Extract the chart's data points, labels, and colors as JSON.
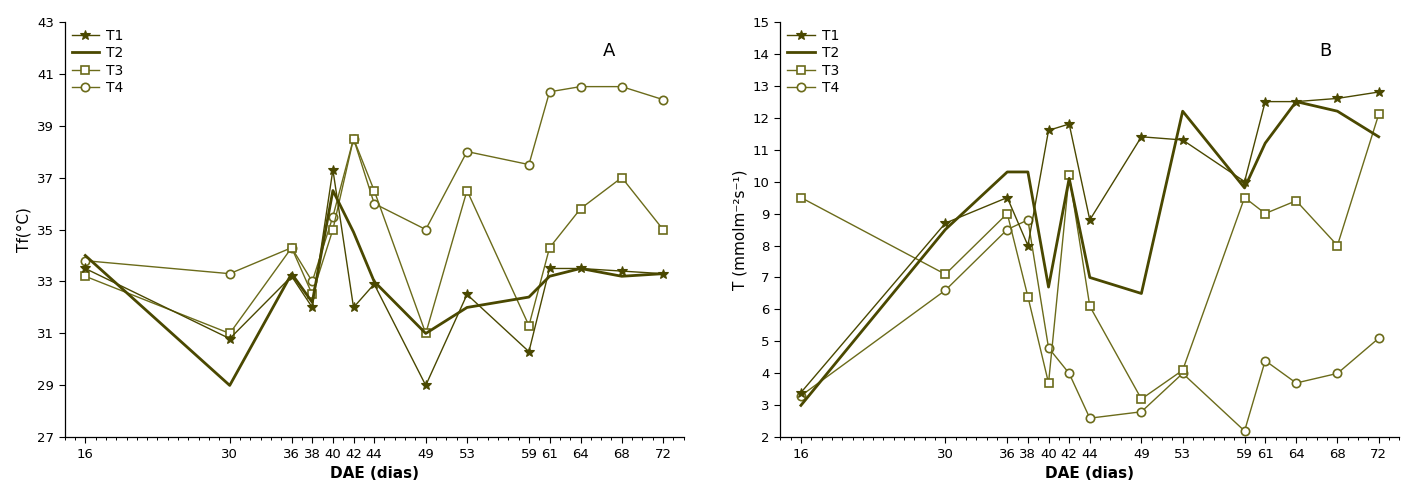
{
  "x_values": [
    16,
    30,
    36,
    38,
    40,
    42,
    44,
    49,
    53,
    59,
    61,
    64,
    68,
    72
  ],
  "x_ticks": [
    16,
    30,
    36,
    38,
    40,
    42,
    44,
    49,
    53,
    59,
    61,
    64,
    68,
    72
  ],
  "x_lim": [
    14,
    74
  ],
  "panel_A": {
    "title": "A",
    "ylabel": "Tf(°C)",
    "xlabel": "DAE (dias)",
    "ylim": [
      27,
      43
    ],
    "yticks": [
      27,
      29,
      31,
      33,
      35,
      37,
      39,
      41,
      43
    ],
    "T1": [
      33.5,
      30.8,
      33.2,
      32.0,
      37.3,
      32.0,
      32.9,
      29.0,
      32.5,
      30.3,
      33.5,
      33.5,
      33.4,
      33.3
    ],
    "T2": [
      34.0,
      29.0,
      33.3,
      32.2,
      36.5,
      34.9,
      33.0,
      31.0,
      32.0,
      32.4,
      33.2,
      33.5,
      33.2,
      33.3
    ],
    "T3": [
      33.2,
      31.0,
      34.3,
      32.5,
      35.0,
      38.5,
      36.5,
      31.0,
      36.5,
      31.3,
      34.3,
      35.8,
      37.0,
      35.0
    ],
    "T4": [
      33.8,
      33.3,
      34.3,
      33.0,
      35.5,
      38.5,
      36.0,
      35.0,
      38.0,
      37.5,
      40.3,
      40.5,
      40.5,
      40.0
    ]
  },
  "panel_B": {
    "title": "B",
    "ylabel": "T (mmolm⁻²s⁻¹)",
    "xlabel": "DAE (dias)",
    "ylim": [
      2,
      15
    ],
    "yticks": [
      2,
      3,
      4,
      5,
      6,
      7,
      8,
      9,
      10,
      11,
      12,
      13,
      14,
      15
    ],
    "T1": [
      3.4,
      8.7,
      9.5,
      8.0,
      11.6,
      11.8,
      8.8,
      11.4,
      11.3,
      10.0,
      12.5,
      12.5,
      12.6,
      12.8
    ],
    "T2": [
      3.0,
      8.5,
      10.3,
      10.3,
      6.7,
      10.1,
      7.0,
      6.5,
      12.2,
      9.8,
      11.2,
      12.5,
      12.2,
      11.4
    ],
    "T3": [
      9.5,
      7.1,
      9.0,
      6.4,
      3.7,
      10.2,
      6.1,
      3.2,
      4.1,
      9.5,
      9.0,
      9.4,
      8.0,
      12.1
    ],
    "T4": [
      3.3,
      6.6,
      8.5,
      8.8,
      4.8,
      4.0,
      2.6,
      2.8,
      4.0,
      2.2,
      4.4,
      3.7,
      4.0,
      5.1
    ]
  },
  "color_dark": "#4a4800",
  "color_light": "#6b6b1a",
  "bg_color": "#ffffff"
}
